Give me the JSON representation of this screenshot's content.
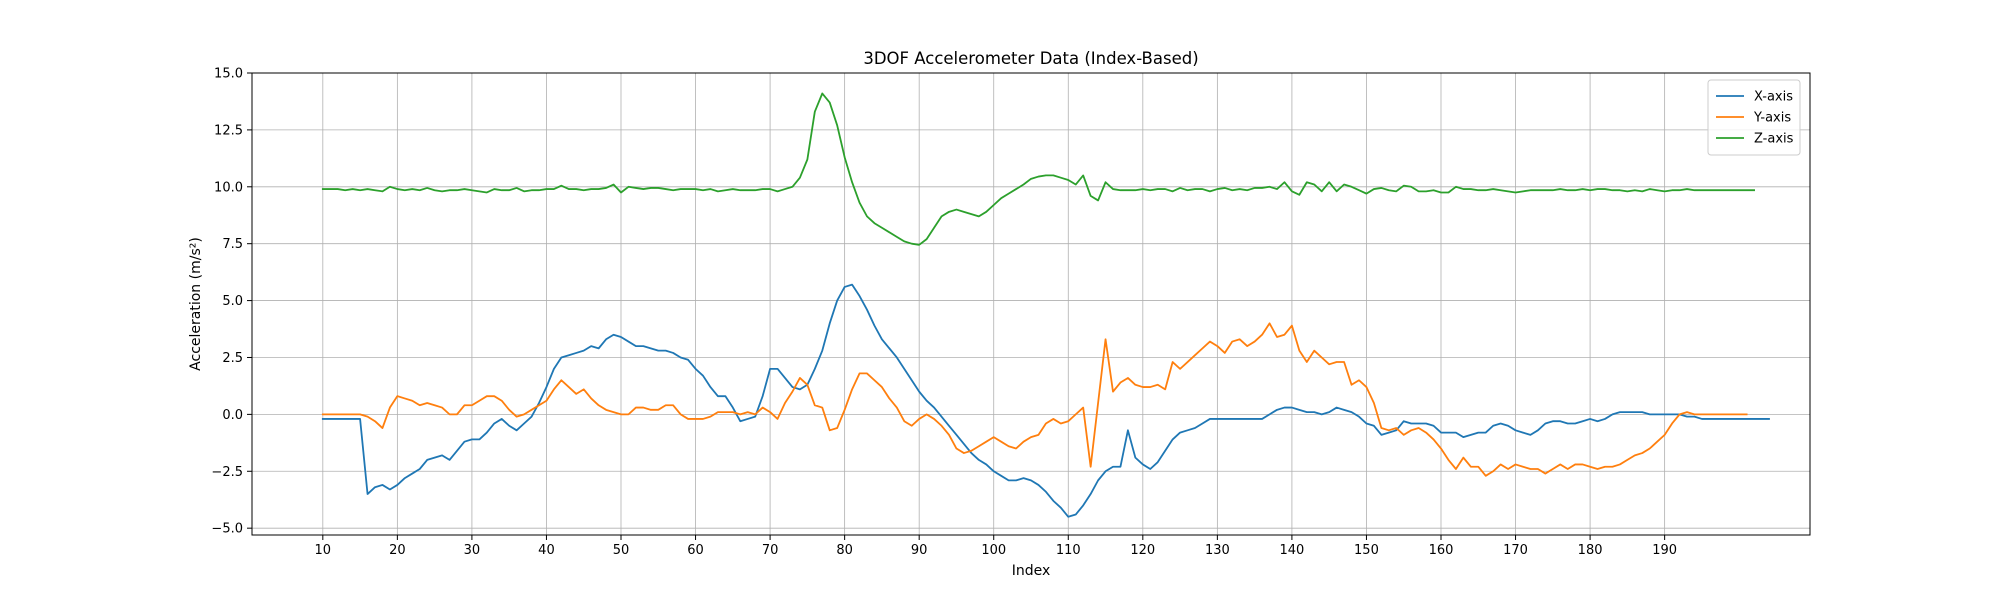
{
  "chart_data": {
    "type": "line",
    "title": "3DOF Accelerometer Data (Index-Based)",
    "xlabel": "Index",
    "ylabel": "Acceleration (m/s²)",
    "xlim": [
      0.5,
      209.5
    ],
    "ylim": [
      -5.3,
      15.0
    ],
    "xticks": [
      "10",
      "20",
      "30",
      "40",
      "50",
      "60",
      "70",
      "80",
      "90",
      "100",
      "110",
      "120",
      "130",
      "140",
      "150",
      "160",
      "170",
      "180",
      "190"
    ],
    "yticks": [
      "−5.0",
      "−2.5",
      "0.0",
      "2.5",
      "5.0",
      "7.5",
      "10.0",
      "12.5",
      "15.0"
    ],
    "grid": true,
    "legend_position": "top-right",
    "x_start": 10,
    "series": [
      {
        "name": "X-axis",
        "color": "#1f77b4",
        "values": [
          -0.2,
          -0.2,
          -0.2,
          -0.2,
          -0.2,
          -0.2,
          -3.5,
          -3.2,
          -3.1,
          -3.3,
          -3.1,
          -2.8,
          -2.6,
          -2.4,
          -2.0,
          -1.9,
          -1.8,
          -2.0,
          -1.6,
          -1.2,
          -1.1,
          -1.1,
          -0.8,
          -0.4,
          -0.2,
          -0.5,
          -0.7,
          -0.4,
          -0.1,
          0.5,
          1.2,
          2.0,
          2.5,
          2.6,
          2.7,
          2.8,
          3.0,
          2.9,
          3.3,
          3.5,
          3.4,
          3.2,
          3.0,
          3.0,
          2.9,
          2.8,
          2.8,
          2.7,
          2.5,
          2.4,
          2.0,
          1.7,
          1.2,
          0.8,
          0.8,
          0.3,
          -0.3,
          -0.2,
          -0.1,
          0.8,
          2.0,
          2.0,
          1.6,
          1.2,
          1.1,
          1.3,
          2.0,
          2.8,
          4.0,
          5.0,
          5.6,
          5.7,
          5.2,
          4.6,
          3.9,
          3.3,
          2.9,
          2.5,
          2.0,
          1.5,
          1.0,
          0.6,
          0.3,
          -0.1,
          -0.5,
          -0.9,
          -1.3,
          -1.7,
          -2.0,
          -2.2,
          -2.5,
          -2.7,
          -2.9,
          -2.9,
          -2.8,
          -2.9,
          -3.1,
          -3.4,
          -3.8,
          -4.1,
          -4.5,
          -4.4,
          -4.0,
          -3.5,
          -2.9,
          -2.5,
          -2.3,
          -2.3,
          -0.7,
          -1.9,
          -2.2,
          -2.4,
          -2.1,
          -1.6,
          -1.1,
          -0.8,
          -0.7,
          -0.6,
          -0.4,
          -0.2,
          -0.2,
          -0.2,
          -0.2,
          -0.2,
          -0.2,
          -0.2,
          -0.2,
          0.0,
          0.2,
          0.3,
          0.3,
          0.2,
          0.1,
          0.1,
          0.0,
          0.1,
          0.3,
          0.2,
          0.1,
          -0.1,
          -0.4,
          -0.5,
          -0.9,
          -0.8,
          -0.7,
          -0.3,
          -0.4,
          -0.4,
          -0.4,
          -0.5,
          -0.8,
          -0.8,
          -0.8,
          -1.0,
          -0.9,
          -0.8,
          -0.8,
          -0.5,
          -0.4,
          -0.5,
          -0.7,
          -0.8,
          -0.9,
          -0.7,
          -0.4,
          -0.3,
          -0.3,
          -0.4,
          -0.4,
          -0.3,
          -0.2,
          -0.3,
          -0.2,
          0.0,
          0.1,
          0.1,
          0.1,
          0.1,
          0.0,
          0.0,
          0.0,
          0.0,
          0.0,
          -0.1,
          -0.1,
          -0.2,
          -0.2,
          -0.2,
          -0.2,
          -0.2,
          -0.2,
          -0.2,
          -0.2,
          -0.2,
          -0.2
        ]
      },
      {
        "name": "Y-axis",
        "color": "#ff7f0e",
        "values": [
          0.0,
          0.0,
          0.0,
          0.0,
          0.0,
          0.0,
          -0.1,
          -0.3,
          -0.6,
          0.3,
          0.8,
          0.7,
          0.6,
          0.4,
          0.5,
          0.4,
          0.3,
          0.0,
          0.0,
          0.4,
          0.4,
          0.6,
          0.8,
          0.8,
          0.6,
          0.2,
          -0.1,
          0.0,
          0.2,
          0.4,
          0.6,
          1.1,
          1.5,
          1.2,
          0.9,
          1.1,
          0.7,
          0.4,
          0.2,
          0.1,
          0.0,
          0.0,
          0.3,
          0.3,
          0.2,
          0.2,
          0.4,
          0.4,
          0.0,
          -0.2,
          -0.2,
          -0.2,
          -0.1,
          0.1,
          0.1,
          0.1,
          0.0,
          0.1,
          0.0,
          0.3,
          0.1,
          -0.2,
          0.5,
          1.0,
          1.6,
          1.3,
          0.4,
          0.3,
          -0.7,
          -0.6,
          0.2,
          1.1,
          1.8,
          1.8,
          1.5,
          1.2,
          0.7,
          0.3,
          -0.3,
          -0.5,
          -0.2,
          0.0,
          -0.2,
          -0.5,
          -0.9,
          -1.5,
          -1.7,
          -1.6,
          -1.4,
          -1.2,
          -1.0,
          -1.2,
          -1.4,
          -1.5,
          -1.2,
          -1.0,
          -0.9,
          -0.4,
          -0.2,
          -0.4,
          -0.3,
          0.0,
          0.3,
          -2.3,
          0.5,
          3.3,
          1.0,
          1.4,
          1.6,
          1.3,
          1.2,
          1.2,
          1.3,
          1.1,
          2.3,
          2.0,
          2.3,
          2.6,
          2.9,
          3.2,
          3.0,
          2.7,
          3.2,
          3.3,
          3.0,
          3.2,
          3.5,
          4.0,
          3.4,
          3.5,
          3.9,
          2.8,
          2.3,
          2.8,
          2.5,
          2.2,
          2.3,
          2.3,
          1.3,
          1.5,
          1.2,
          0.5,
          -0.6,
          -0.7,
          -0.6,
          -0.9,
          -0.7,
          -0.6,
          -0.8,
          -1.1,
          -1.5,
          -2.0,
          -2.4,
          -1.9,
          -2.3,
          -2.3,
          -2.7,
          -2.5,
          -2.2,
          -2.4,
          -2.2,
          -2.3,
          -2.4,
          -2.4,
          -2.6,
          -2.4,
          -2.2,
          -2.4,
          -2.2,
          -2.2,
          -2.3,
          -2.4,
          -2.3,
          -2.3,
          -2.2,
          -2.0,
          -1.8,
          -1.7,
          -1.5,
          -1.2,
          -0.9,
          -0.4,
          0.0,
          0.1,
          0.0,
          0.0,
          0.0,
          0.0,
          0.0,
          0.0,
          0.0,
          0.0
        ]
      },
      {
        "name": "Z-axis",
        "color": "#2ca02c",
        "values": [
          9.9,
          9.9,
          9.9,
          9.85,
          9.9,
          9.85,
          9.9,
          9.85,
          9.8,
          10.0,
          9.9,
          9.85,
          9.9,
          9.85,
          9.95,
          9.85,
          9.8,
          9.85,
          9.85,
          9.9,
          9.85,
          9.8,
          9.75,
          9.9,
          9.85,
          9.85,
          9.95,
          9.8,
          9.85,
          9.85,
          9.9,
          9.9,
          10.05,
          9.9,
          9.9,
          9.85,
          9.9,
          9.9,
          9.95,
          10.1,
          9.75,
          10.0,
          9.95,
          9.9,
          9.95,
          9.95,
          9.9,
          9.85,
          9.9,
          9.9,
          9.9,
          9.85,
          9.9,
          9.8,
          9.85,
          9.9,
          9.85,
          9.85,
          9.85,
          9.9,
          9.9,
          9.8,
          9.9,
          10.0,
          10.4,
          11.2,
          13.3,
          14.1,
          13.7,
          12.7,
          11.3,
          10.2,
          9.3,
          8.7,
          8.4,
          8.2,
          8.0,
          7.8,
          7.6,
          7.5,
          7.45,
          7.7,
          8.2,
          8.7,
          8.9,
          9.0,
          8.9,
          8.8,
          8.7,
          8.9,
          9.2,
          9.5,
          9.7,
          9.9,
          10.1,
          10.35,
          10.45,
          10.5,
          10.5,
          10.4,
          10.3,
          10.1,
          10.5,
          9.6,
          9.4,
          10.2,
          9.9,
          9.85,
          9.85,
          9.85,
          9.9,
          9.85,
          9.9,
          9.9,
          9.8,
          9.95,
          9.85,
          9.9,
          9.9,
          9.8,
          9.9,
          9.95,
          9.85,
          9.9,
          9.85,
          9.95,
          9.95,
          10.0,
          9.9,
          10.2,
          9.8,
          9.65,
          10.2,
          10.1,
          9.8,
          10.2,
          9.8,
          10.1,
          10.0,
          9.85,
          9.7,
          9.9,
          9.95,
          9.85,
          9.8,
          10.05,
          10.0,
          9.8,
          9.8,
          9.85,
          9.75,
          9.75,
          10.0,
          9.9,
          9.9,
          9.85,
          9.85,
          9.9,
          9.85,
          9.8,
          9.75,
          9.8,
          9.85,
          9.85,
          9.85,
          9.85,
          9.9,
          9.85,
          9.85,
          9.9,
          9.85,
          9.9,
          9.9,
          9.85,
          9.85,
          9.8,
          9.85,
          9.8,
          9.9,
          9.85,
          9.8,
          9.85,
          9.85,
          9.9,
          9.85,
          9.85,
          9.85,
          9.85,
          9.85,
          9.85,
          9.85,
          9.85,
          9.85
        ]
      }
    ]
  }
}
